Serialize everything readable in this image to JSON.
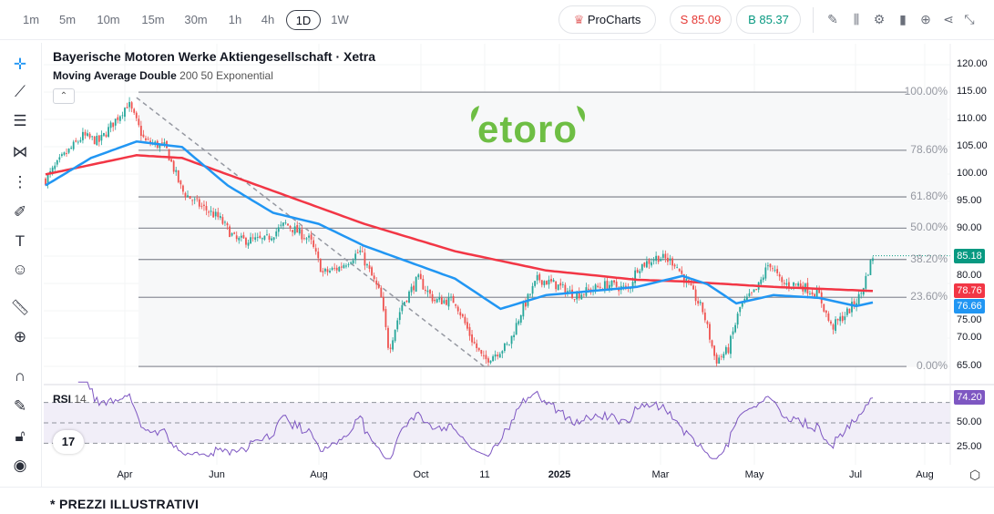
{
  "timeframes": [
    "1m",
    "5m",
    "10m",
    "15m",
    "30m",
    "1h",
    "4h",
    "1D",
    "1W"
  ],
  "active_timeframe": "1D",
  "procharts_label": "ProCharts",
  "sell_label": "S 85.09",
  "buy_label": "B 85.37",
  "toolbar_icons": [
    "pencil-icon",
    "candles-icon",
    "gear-icon",
    "bars-icon",
    "plus-circle-icon",
    "share-icon",
    "collapse-icon"
  ],
  "left_tools": [
    "crosshair-icon",
    "trendline-icon",
    "fib-lines-icon",
    "pattern-icon",
    "projection-icon",
    "brush-icon",
    "text-icon",
    "emoji-icon",
    "ruler-icon",
    "zoom-in-icon",
    "magnet-icon",
    "lock-draw-icon",
    "lock-icon",
    "eye-icon"
  ],
  "title": "Bayerische Motoren Werke Aktiengesellschaft · Xetra",
  "indicator": {
    "name": "Moving Average Double",
    "params": "200 50 Exponential"
  },
  "rsi": {
    "name": "RSI",
    "params": "14",
    "value_label": "74.20",
    "axis": [
      "50.00",
      "25.00"
    ]
  },
  "logo_text": "etoro",
  "tv_logo": "17",
  "price_axis": [
    "120.00",
    "115.00",
    "110.00",
    "105.00",
    "100.00",
    "95.00",
    "90.00",
    "80.00",
    "75.00",
    "70.00",
    "65.00"
  ],
  "badges": {
    "last": "85.18",
    "ma200": "78.76",
    "ma50": "76.66"
  },
  "colors": {
    "up": "#26a69a",
    "down": "#ef5350",
    "ma200": "#f23645",
    "ma50": "#2196f3",
    "rsi": "#7e57c2",
    "last": "#089981"
  },
  "fib_levels": [
    {
      "label": "100.00%",
      "price": 115
    },
    {
      "label": "78.60%",
      "price": 104.4
    },
    {
      "label": "61.80%",
      "price": 95.9
    },
    {
      "label": "50.00%",
      "price": 90.2
    },
    {
      "label": "38.20%",
      "price": 84.5
    },
    {
      "label": "23.60%",
      "price": 77.6
    },
    {
      "label": "0.00%",
      "price": 65
    }
  ],
  "dates": [
    {
      "label": "Apr",
      "bold": false
    },
    {
      "label": "Jun",
      "bold": false
    },
    {
      "label": "Aug",
      "bold": false
    },
    {
      "label": "Oct",
      "bold": false
    },
    {
      "label": "11",
      "bold": false
    },
    {
      "label": "2025",
      "bold": true
    },
    {
      "label": "Mar",
      "bold": false
    },
    {
      "label": "May",
      "bold": false
    },
    {
      "label": "Jul",
      "bold": false
    },
    {
      "label": "Aug",
      "bold": false
    }
  ],
  "footer": "* PREZZI ILLUSTRATIVI",
  "chart_data": {
    "type": "candlestick",
    "price_range": [
      62,
      121
    ],
    "price_path": [
      [
        0,
        99
      ],
      [
        0.02,
        103
      ],
      [
        0.045,
        107
      ],
      [
        0.065,
        106
      ],
      [
        0.1,
        113
      ],
      [
        0.12,
        106
      ],
      [
        0.145,
        105
      ],
      [
        0.165,
        97
      ],
      [
        0.18,
        95
      ],
      [
        0.21,
        92
      ],
      [
        0.23,
        88
      ],
      [
        0.265,
        88
      ],
      [
        0.29,
        91
      ],
      [
        0.32,
        88
      ],
      [
        0.335,
        82
      ],
      [
        0.355,
        83
      ],
      [
        0.38,
        86
      ],
      [
        0.405,
        78
      ],
      [
        0.415,
        68
      ],
      [
        0.43,
        76
      ],
      [
        0.45,
        81
      ],
      [
        0.47,
        77
      ],
      [
        0.495,
        77
      ],
      [
        0.515,
        70
      ],
      [
        0.53,
        66
      ],
      [
        0.56,
        69
      ],
      [
        0.575,
        75
      ],
      [
        0.595,
        81
      ],
      [
        0.615,
        80
      ],
      [
        0.64,
        78
      ],
      [
        0.66,
        79
      ],
      [
        0.68,
        80
      ],
      [
        0.705,
        79
      ],
      [
        0.715,
        83
      ],
      [
        0.74,
        85
      ],
      [
        0.76,
        84
      ],
      [
        0.78,
        79
      ],
      [
        0.795,
        75
      ],
      [
        0.81,
        66
      ],
      [
        0.825,
        68
      ],
      [
        0.84,
        76
      ],
      [
        0.86,
        79
      ],
      [
        0.875,
        84
      ],
      [
        0.89,
        80
      ],
      [
        0.91,
        80
      ],
      [
        0.935,
        78
      ],
      [
        0.95,
        72
      ],
      [
        0.97,
        75
      ],
      [
        0.985,
        78
      ],
      [
        1,
        85.18
      ]
    ],
    "ma200_path": [
      [
        0,
        100
      ],
      [
        0.11,
        103.5
      ],
      [
        0.165,
        103
      ],
      [
        0.275,
        97
      ],
      [
        0.385,
        91
      ],
      [
        0.495,
        86
      ],
      [
        0.605,
        82.5
      ],
      [
        0.715,
        80.8
      ],
      [
        0.77,
        80.5
      ],
      [
        0.88,
        79.5
      ],
      [
        1,
        78.76
      ]
    ],
    "ma50_path": [
      [
        0,
        98
      ],
      [
        0.055,
        103
      ],
      [
        0.11,
        106
      ],
      [
        0.165,
        105
      ],
      [
        0.22,
        98
      ],
      [
        0.275,
        93
      ],
      [
        0.33,
        91
      ],
      [
        0.385,
        87
      ],
      [
        0.44,
        84
      ],
      [
        0.495,
        81
      ],
      [
        0.55,
        75.5
      ],
      [
        0.605,
        78
      ],
      [
        0.715,
        79.5
      ],
      [
        0.77,
        81.5
      ],
      [
        0.8,
        80
      ],
      [
        0.835,
        76.5
      ],
      [
        0.88,
        78
      ],
      [
        0.935,
        77.5
      ],
      [
        0.98,
        76
      ],
      [
        1,
        76.66
      ]
    ],
    "trendline": [
      [
        0.11,
        114
      ],
      [
        0.53,
        65
      ]
    ],
    "rsi_levels": [
      70,
      50,
      30
    ]
  }
}
